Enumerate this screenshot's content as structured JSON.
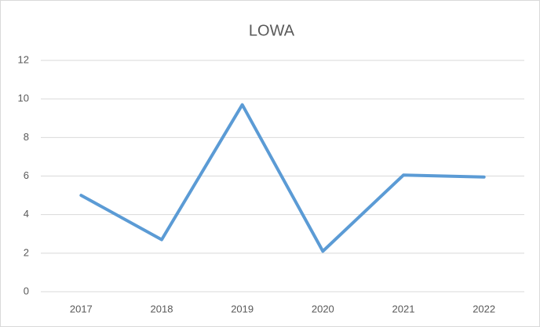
{
  "chart_data": {
    "type": "line",
    "title": "LOWA",
    "categories": [
      "2017",
      "2018",
      "2019",
      "2020",
      "2021",
      "2022"
    ],
    "series": [
      {
        "name": "LOWA",
        "color": "#5b9bd5",
        "values": [
          5.0,
          2.7,
          9.7,
          2.1,
          6.05,
          5.95
        ]
      }
    ],
    "ylim": [
      0,
      12
    ],
    "yticks": [
      0,
      2,
      4,
      6,
      8,
      10,
      12
    ],
    "grid": true
  }
}
